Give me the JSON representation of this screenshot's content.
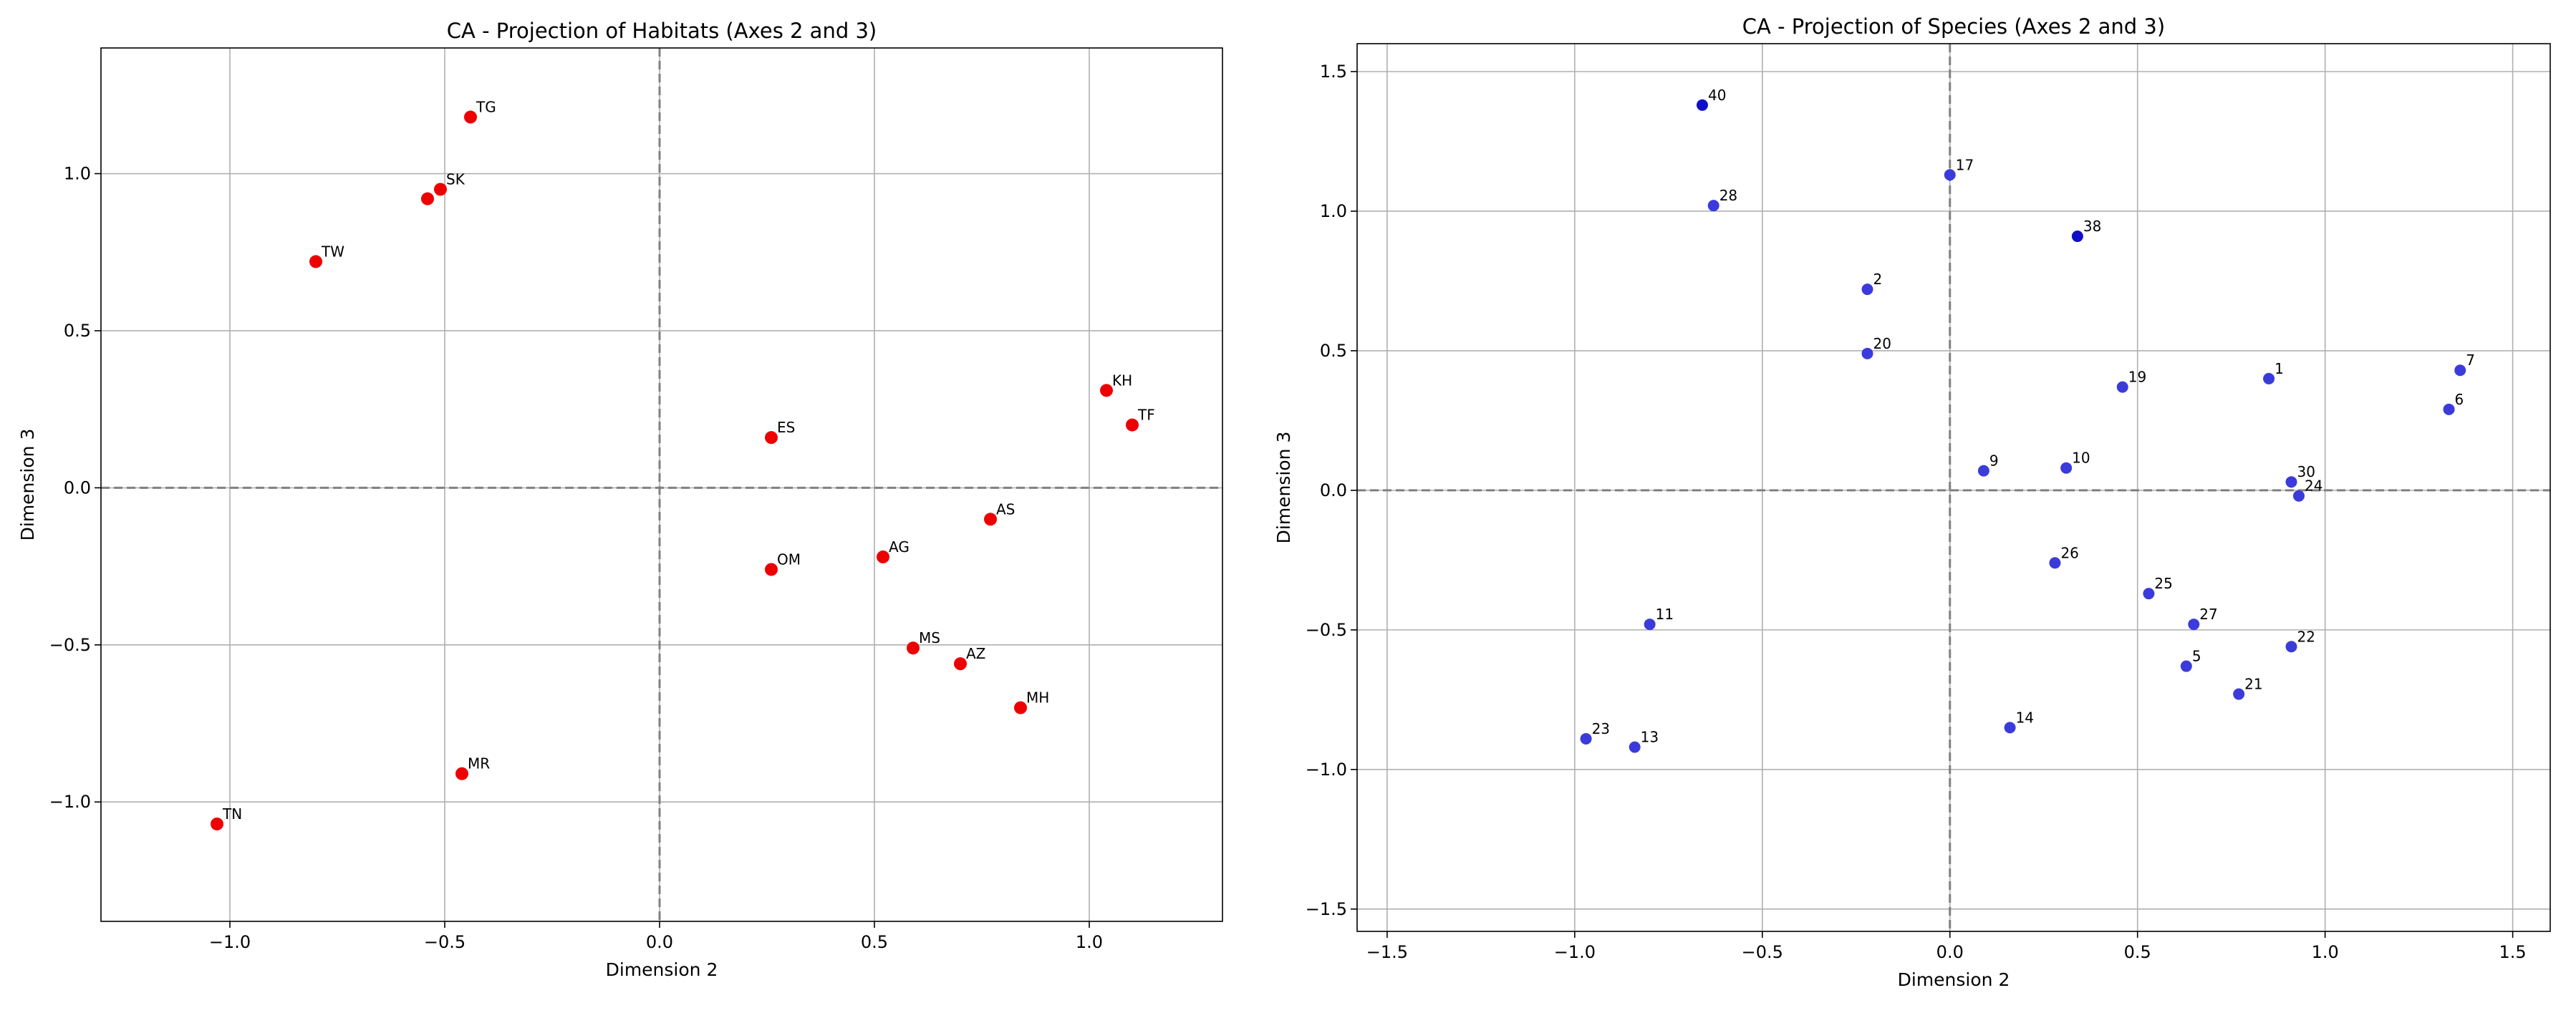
{
  "figure": {
    "charts": [
      {
        "title": "CA - Projection of Habitats (Axes 2 and 3)",
        "xlabel": "Dimension 2",
        "ylabel": "Dimension 3",
        "point_color": "#ee0000"
      },
      {
        "title": "CA - Projection of Species (Axes 2 and 3)",
        "xlabel": "Dimension 2",
        "ylabel": "Dimension 3",
        "point_color": "#3b3bdc",
        "overlap_color": "#1010c8"
      }
    ]
  },
  "chart_data": [
    {
      "type": "scatter",
      "title": "CA - Projection of Habitats (Axes 2 and 3)",
      "xlabel": "Dimension 2",
      "ylabel": "Dimension 3",
      "xlim": [
        -1.3,
        1.31
      ],
      "ylim": [
        -1.38,
        1.4
      ],
      "xticks": [
        -1.0,
        -0.5,
        0.0,
        0.5,
        1.0
      ],
      "xtick_labels": [
        "−1.0",
        "−0.5",
        "0.0",
        "0.5",
        "1.0"
      ],
      "yticks": [
        -1.0,
        -0.5,
        0.0,
        0.5,
        1.0
      ],
      "ytick_labels": [
        "−1.0",
        "−0.5",
        "0.0",
        "0.5",
        "1.0"
      ],
      "grid": true,
      "reference_lines": {
        "x": 0,
        "y": 0,
        "style": "dashed"
      },
      "points": [
        {
          "label": "TG",
          "x": -0.44,
          "y": 1.18
        },
        {
          "label": "SK",
          "x": -0.51,
          "y": 0.95
        },
        {
          "label": "",
          "x": -0.54,
          "y": 0.92
        },
        {
          "label": "TW",
          "x": -0.8,
          "y": 0.72
        },
        {
          "label": "ES",
          "x": 0.26,
          "y": 0.16
        },
        {
          "label": "KH",
          "x": 1.04,
          "y": 0.31
        },
        {
          "label": "TF",
          "x": 1.1,
          "y": 0.2
        },
        {
          "label": "AS",
          "x": 0.77,
          "y": -0.1
        },
        {
          "label": "AG",
          "x": 0.52,
          "y": -0.22
        },
        {
          "label": "OM",
          "x": 0.26,
          "y": -0.26
        },
        {
          "label": "MS",
          "x": 0.59,
          "y": -0.51
        },
        {
          "label": "AZ",
          "x": 0.7,
          "y": -0.56
        },
        {
          "label": "MH",
          "x": 0.84,
          "y": -0.7
        },
        {
          "label": "MR",
          "x": -0.46,
          "y": -0.91
        },
        {
          "label": "TN",
          "x": -1.03,
          "y": -1.07
        }
      ]
    },
    {
      "type": "scatter",
      "title": "CA - Projection of Species (Axes 2 and 3)",
      "xlabel": "Dimension 2",
      "ylabel": "Dimension 3",
      "xlim": [
        -1.58,
        1.6
      ],
      "ylim": [
        -1.58,
        1.6
      ],
      "xticks": [
        -1.5,
        -1.0,
        -0.5,
        0.0,
        0.5,
        1.0,
        1.5
      ],
      "xtick_labels": [
        "−1.5",
        "−1.0",
        "−0.5",
        "0.0",
        "0.5",
        "1.0",
        "1.5"
      ],
      "yticks": [
        -1.5,
        -1.0,
        -0.5,
        0.0,
        0.5,
        1.0,
        1.5
      ],
      "ytick_labels": [
        "−1.5",
        "−1.0",
        "−0.5",
        "0.0",
        "0.5",
        "1.0",
        "1.5"
      ],
      "grid": true,
      "reference_lines": {
        "x": 0,
        "y": 0,
        "style": "dashed"
      },
      "points": [
        {
          "label": "40",
          "x": -0.66,
          "y": 1.38,
          "overlap": true
        },
        {
          "label": "17",
          "x": 0.0,
          "y": 1.13
        },
        {
          "label": "28",
          "x": -0.63,
          "y": 1.02
        },
        {
          "label": "38",
          "x": 0.34,
          "y": 0.91,
          "overlap": true
        },
        {
          "label": "2",
          "x": -0.22,
          "y": 0.72
        },
        {
          "label": "20",
          "x": -0.22,
          "y": 0.49
        },
        {
          "label": "19",
          "x": 0.46,
          "y": 0.37
        },
        {
          "label": "1",
          "x": 0.85,
          "y": 0.4
        },
        {
          "label": "7",
          "x": 1.36,
          "y": 0.43
        },
        {
          "label": "6",
          "x": 1.33,
          "y": 0.29
        },
        {
          "label": "9",
          "x": 0.09,
          "y": 0.07
        },
        {
          "label": "10",
          "x": 0.31,
          "y": 0.08
        },
        {
          "label": "30",
          "x": 0.91,
          "y": 0.03
        },
        {
          "label": "24",
          "x": 0.93,
          "y": -0.02
        },
        {
          "label": "26",
          "x": 0.28,
          "y": -0.26
        },
        {
          "label": "25",
          "x": 0.53,
          "y": -0.37
        },
        {
          "label": "27",
          "x": 0.65,
          "y": -0.48
        },
        {
          "label": "11",
          "x": -0.8,
          "y": -0.48
        },
        {
          "label": "22",
          "x": 0.91,
          "y": -0.56
        },
        {
          "label": "5",
          "x": 0.63,
          "y": -0.63
        },
        {
          "label": "21",
          "x": 0.77,
          "y": -0.73
        },
        {
          "label": "14",
          "x": 0.16,
          "y": -0.85
        },
        {
          "label": "23",
          "x": -0.97,
          "y": -0.89
        },
        {
          "label": "13",
          "x": -0.84,
          "y": -0.92
        }
      ]
    }
  ]
}
